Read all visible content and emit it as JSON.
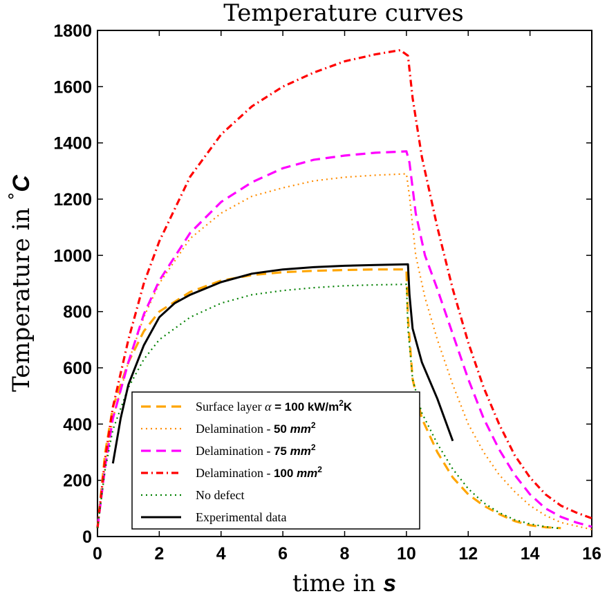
{
  "chart_data": {
    "type": "line",
    "title": "Temperature curves",
    "xlabel": "time in s",
    "xlabel_parts": [
      "time in ",
      "s"
    ],
    "ylabel": "Temperature in °C",
    "ylabel_parts": [
      "Temperature in ",
      "°",
      "C"
    ],
    "xlim": [
      0,
      16
    ],
    "ylim": [
      0,
      1800
    ],
    "xticks": [
      "0",
      "2",
      "4",
      "6",
      "8",
      "10",
      "12",
      "14",
      "16"
    ],
    "yticks": [
      "0",
      "200",
      "400",
      "600",
      "800",
      "1000",
      "1200",
      "1400",
      "1600",
      "1800"
    ],
    "grid": false,
    "legend_position": "lower-left",
    "series": [
      {
        "name": "Surface layer α = 100 kW/m²K",
        "legend_parts": [
          "Surface layer ",
          "α",
          " = 100 kW/m",
          "2",
          "K"
        ],
        "color": "#ffa500",
        "style": "dashed",
        "points": [
          [
            0,
            30
          ],
          [
            0.25,
            300
          ],
          [
            0.5,
            460
          ],
          [
            1,
            620
          ],
          [
            1.5,
            730
          ],
          [
            2,
            800
          ],
          [
            3,
            870
          ],
          [
            4,
            910
          ],
          [
            5,
            930
          ],
          [
            6,
            940
          ],
          [
            7,
            945
          ],
          [
            8,
            948
          ],
          [
            9,
            950
          ],
          [
            10,
            950
          ],
          [
            10.05,
            780
          ],
          [
            10.2,
            560
          ],
          [
            10.5,
            420
          ],
          [
            11,
            300
          ],
          [
            11.5,
            210
          ],
          [
            12,
            150
          ],
          [
            12.5,
            110
          ],
          [
            13,
            80
          ],
          [
            13.5,
            55
          ],
          [
            14,
            40
          ],
          [
            14.5,
            33
          ],
          [
            15,
            30
          ]
        ]
      },
      {
        "name": "Delamination - 50 mm²",
        "legend_parts": [
          "Delamination - ",
          "50 ",
          "mm",
          "2"
        ],
        "color": "#ff8c00",
        "style": "dotted",
        "points": [
          [
            0,
            30
          ],
          [
            0.25,
            250
          ],
          [
            0.5,
            420
          ],
          [
            1,
            620
          ],
          [
            1.5,
            780
          ],
          [
            2,
            900
          ],
          [
            3,
            1060
          ],
          [
            4,
            1150
          ],
          [
            5,
            1210
          ],
          [
            6,
            1240
          ],
          [
            7,
            1265
          ],
          [
            8,
            1278
          ],
          [
            9,
            1285
          ],
          [
            10,
            1290
          ],
          [
            10.1,
            1210
          ],
          [
            10.3,
            1000
          ],
          [
            10.6,
            850
          ],
          [
            11,
            700
          ],
          [
            11.5,
            540
          ],
          [
            12,
            400
          ],
          [
            12.5,
            300
          ],
          [
            13,
            220
          ],
          [
            13.5,
            160
          ],
          [
            14,
            110
          ],
          [
            14.5,
            75
          ],
          [
            15,
            50
          ],
          [
            16,
            25
          ]
        ]
      },
      {
        "name": "Delamination - 75 mm²",
        "legend_parts": [
          "Delamination - ",
          "75 ",
          "mm",
          "2"
        ],
        "color": "#ff00ff",
        "style": "dashed",
        "points": [
          [
            0,
            30
          ],
          [
            0.25,
            250
          ],
          [
            0.5,
            420
          ],
          [
            1,
            620
          ],
          [
            1.5,
            790
          ],
          [
            2,
            910
          ],
          [
            3,
            1080
          ],
          [
            4,
            1190
          ],
          [
            5,
            1260
          ],
          [
            6,
            1310
          ],
          [
            7,
            1340
          ],
          [
            8,
            1355
          ],
          [
            9,
            1365
          ],
          [
            10,
            1370
          ],
          [
            10.1,
            1330
          ],
          [
            10.3,
            1150
          ],
          [
            10.6,
            1000
          ],
          [
            11,
            880
          ],
          [
            11.5,
            720
          ],
          [
            12,
            560
          ],
          [
            12.5,
            420
          ],
          [
            13,
            310
          ],
          [
            13.5,
            220
          ],
          [
            14,
            150
          ],
          [
            14.5,
            100
          ],
          [
            15,
            70
          ],
          [
            15.5,
            50
          ],
          [
            16,
            35
          ]
        ]
      },
      {
        "name": "Delamination - 100 mm²",
        "legend_parts": [
          "Delamination - ",
          "100 ",
          "mm",
          "2"
        ],
        "color": "#ff0000",
        "style": "dashdot",
        "points": [
          [
            0,
            30
          ],
          [
            0.25,
            280
          ],
          [
            0.5,
            460
          ],
          [
            1,
            700
          ],
          [
            1.5,
            900
          ],
          [
            2,
            1050
          ],
          [
            3,
            1280
          ],
          [
            4,
            1430
          ],
          [
            5,
            1530
          ],
          [
            6,
            1600
          ],
          [
            7,
            1650
          ],
          [
            8,
            1690
          ],
          [
            9,
            1715
          ],
          [
            9.8,
            1730
          ],
          [
            10.05,
            1710
          ],
          [
            10.2,
            1560
          ],
          [
            10.5,
            1350
          ],
          [
            11,
            1100
          ],
          [
            11.5,
            880
          ],
          [
            12,
            690
          ],
          [
            12.5,
            530
          ],
          [
            13,
            400
          ],
          [
            13.5,
            290
          ],
          [
            14,
            210
          ],
          [
            14.5,
            150
          ],
          [
            15,
            110
          ],
          [
            15.5,
            85
          ],
          [
            16,
            65
          ]
        ]
      },
      {
        "name": "No defect",
        "legend_parts": [
          "No defect"
        ],
        "color": "#008000",
        "style": "dotted",
        "points": [
          [
            0,
            30
          ],
          [
            0.25,
            240
          ],
          [
            0.5,
            380
          ],
          [
            1,
            530
          ],
          [
            1.5,
            630
          ],
          [
            2,
            700
          ],
          [
            3,
            780
          ],
          [
            4,
            830
          ],
          [
            5,
            860
          ],
          [
            6,
            875
          ],
          [
            7,
            885
          ],
          [
            8,
            892
          ],
          [
            9,
            895
          ],
          [
            10,
            897
          ],
          [
            10.05,
            740
          ],
          [
            10.2,
            560
          ],
          [
            10.5,
            440
          ],
          [
            11,
            330
          ],
          [
            11.5,
            240
          ],
          [
            12,
            170
          ],
          [
            12.5,
            120
          ],
          [
            13,
            85
          ],
          [
            13.5,
            60
          ],
          [
            14,
            45
          ],
          [
            14.5,
            35
          ],
          [
            15,
            28
          ]
        ]
      },
      {
        "name": "Experimental data",
        "legend_parts": [
          "Experimental data"
        ],
        "color": "#000000",
        "style": "solid",
        "points": [
          [
            0.5,
            260
          ],
          [
            0.75,
            420
          ],
          [
            1,
            540
          ],
          [
            1.5,
            680
          ],
          [
            2,
            780
          ],
          [
            2.5,
            830
          ],
          [
            3,
            860
          ],
          [
            4,
            905
          ],
          [
            5,
            935
          ],
          [
            6,
            950
          ],
          [
            7,
            958
          ],
          [
            8,
            963
          ],
          [
            9,
            966
          ],
          [
            10.05,
            968
          ],
          [
            10.1,
            860
          ],
          [
            10.2,
            740
          ],
          [
            10.5,
            620
          ],
          [
            11,
            490
          ],
          [
            11.5,
            340
          ]
        ]
      }
    ]
  }
}
